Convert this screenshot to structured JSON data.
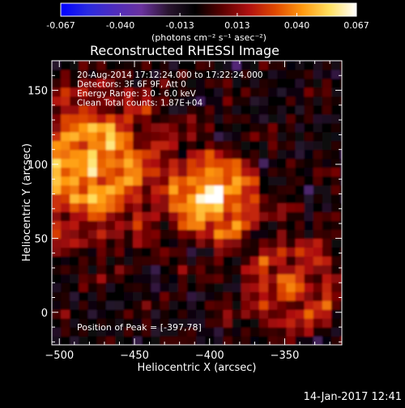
{
  "colorbar": {
    "ticks": [
      "-0.067",
      "-0.040",
      "-0.013",
      "0.013",
      "0.040",
      "0.067"
    ],
    "tick_values": [
      -0.067,
      -0.04,
      -0.013,
      0.013,
      0.04,
      0.067
    ],
    "range": [
      -0.067,
      0.067
    ],
    "unit_label": "(photons cm⁻² s⁻¹ asec⁻²)"
  },
  "chart_data": {
    "type": "heatmap",
    "title": "Reconstructed RHESSI Image",
    "xlabel": "Heliocentric X (arcsec)",
    "ylabel": "Heliocentric Y (arcsec)",
    "xlim": [
      -505,
      -312
    ],
    "ylim": [
      -22,
      170
    ],
    "x_ticks": [
      -500,
      -450,
      -400,
      -350
    ],
    "y_ticks": [
      0,
      50,
      100,
      150
    ],
    "annotations": [
      "20-Aug-2014 17:12:24.000 to 17:22:24.000",
      "Detectors: 3F 6F 9F, Att 0",
      "Energy Range: 3.0 - 6.0 keV",
      "Clean     Total counts: 1.87E+04"
    ],
    "peak_label": "Position of Peak = [-397,78]",
    "peak_position": [
      -397,
      78
    ],
    "sources": [
      {
        "x": -397,
        "y": 78,
        "peak": 0.067
      },
      {
        "x": -480,
        "y": 100,
        "peak": 0.055
      },
      {
        "x": -345,
        "y": 18,
        "peak": 0.035
      }
    ],
    "colormap": [
      "#0000ff",
      "#2a2ae0",
      "#4f2dbe",
      "#6a329e",
      "#2a1530",
      "#000000",
      "#5a0000",
      "#b01010",
      "#e04a00",
      "#ff9a10",
      "#ffe060",
      "#ffffff"
    ]
  },
  "footer": {
    "timestamp": "14-Jan-2017 12:41"
  }
}
